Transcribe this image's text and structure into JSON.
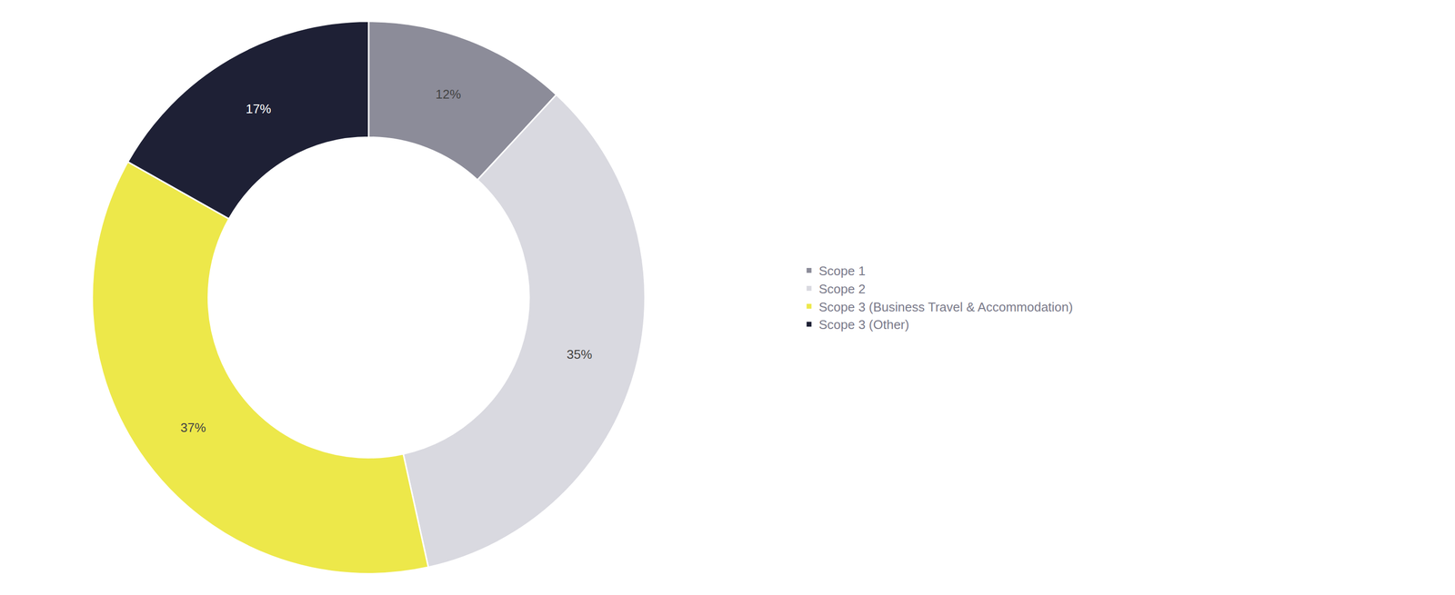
{
  "chart_data": {
    "type": "donut",
    "categories": [
      "Scope 1",
      "Scope 2",
      "Scope 3 (Business Travel & Accommodation)",
      "Scope 3 (Other)"
    ],
    "values": [
      12,
      35,
      37,
      17
    ],
    "value_labels": [
      "12%",
      "35%",
      "37%",
      "17%"
    ],
    "colors": [
      "#8c8c99",
      "#d9d9e0",
      "#ede84a",
      "#1e2035"
    ],
    "data_labels": true,
    "legend": "right"
  }
}
